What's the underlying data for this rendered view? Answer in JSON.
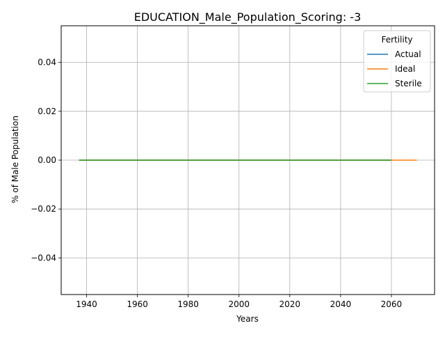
{
  "chart_data": {
    "type": "line",
    "title": "EDUCATION_Male_Population_Scoring: -3",
    "xlabel": "Years",
    "ylabel": "% of Male Population",
    "xlim": [
      1930,
      2077
    ],
    "ylim": [
      -0.055,
      0.055
    ],
    "x_ticks": [
      1940,
      1960,
      1980,
      2000,
      2020,
      2040,
      2060
    ],
    "x_tick_labels": [
      "1940",
      "1960",
      "1980",
      "2000",
      "2020",
      "2040",
      "2060"
    ],
    "y_ticks": [
      -0.04,
      -0.02,
      0.0,
      0.02,
      0.04
    ],
    "y_tick_labels": [
      "−0.04",
      "−0.02",
      "0.00",
      "0.02",
      "0.04"
    ],
    "grid": true,
    "legend": {
      "title": "Fertility",
      "placement": "top-right"
    },
    "series": [
      {
        "name": "Actual",
        "color": "#1f77b4",
        "x": [
          1937,
          2060
        ],
        "values": [
          0,
          0
        ]
      },
      {
        "name": "Ideal",
        "color": "#ff7f0e",
        "x": [
          1937,
          2070
        ],
        "values": [
          0,
          0
        ]
      },
      {
        "name": "Sterile",
        "color": "#2ca02c",
        "x": [
          1937,
          2060
        ],
        "values": [
          0,
          0
        ]
      }
    ]
  }
}
